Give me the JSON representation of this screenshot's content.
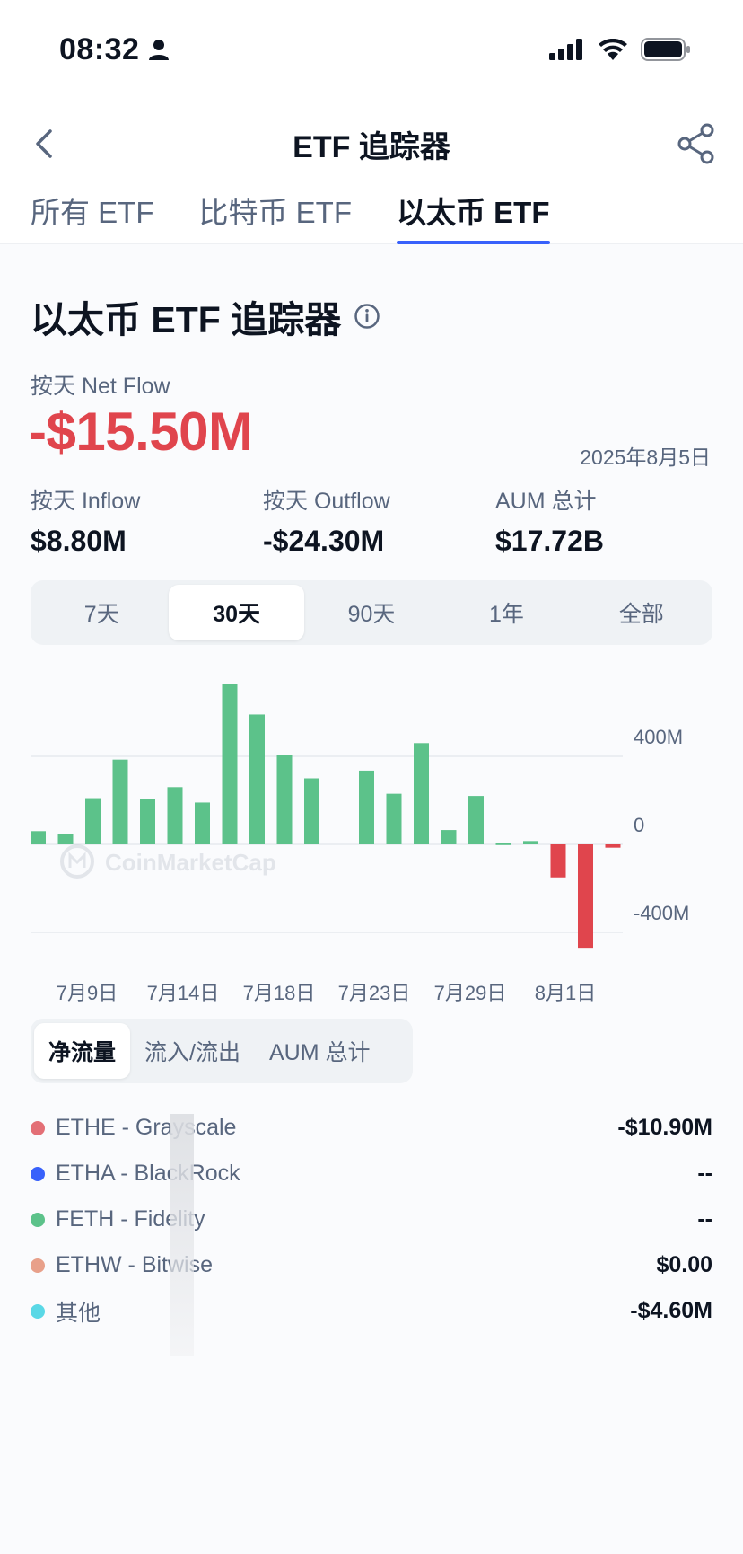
{
  "status_bar": {
    "time": "08:32",
    "icons": [
      "person-icon",
      "signal-icon",
      "wifi-icon",
      "battery-icon"
    ]
  },
  "nav": {
    "title": "ETF 追踪器",
    "back_icon": "back-chevron-icon",
    "share_icon": "share-icon"
  },
  "tabs": [
    {
      "label": "所有 ETF",
      "active": false
    },
    {
      "label": "比特币 ETF",
      "active": false
    },
    {
      "label": "以太币 ETF",
      "active": true
    }
  ],
  "summary": {
    "title": "以太币 ETF 追踪器",
    "netflow_label": "按天 Net Flow",
    "netflow_value": "-$15.50M",
    "date": "2025年8月5日",
    "stats": [
      {
        "label": "按天 Inflow",
        "value": "$8.80M"
      },
      {
        "label": "按天 Outflow",
        "value": "-$24.30M"
      },
      {
        "label": "AUM 总计",
        "value": "$17.72B"
      }
    ]
  },
  "periods": [
    {
      "label": "7天",
      "active": false
    },
    {
      "label": "30天",
      "active": true
    },
    {
      "label": "90天",
      "active": false
    },
    {
      "label": "1年",
      "active": false
    },
    {
      "label": "全部",
      "active": false
    }
  ],
  "chart_data": {
    "type": "bar",
    "watermark": "CoinMarketCap",
    "x_tick_labels": [
      "7月9日",
      "7月14日",
      "7月18日",
      "7月23日",
      "7月29日",
      "8月1日"
    ],
    "y_tick_labels": [
      "400M",
      "0",
      "-400M"
    ],
    "ylim": [
      -450,
      750
    ],
    "values": [
      60,
      45,
      210,
      385,
      205,
      260,
      190,
      730,
      590,
      405,
      300,
      null,
      335,
      230,
      460,
      65,
      220,
      5,
      15,
      -150,
      -470,
      -15
    ],
    "positive_color": "#5cc28a",
    "negative_color": "#e0454d"
  },
  "metrics": [
    {
      "label": "净流量",
      "active": true
    },
    {
      "label": "流入/流出",
      "active": false
    },
    {
      "label": "AUM 总计",
      "active": false
    }
  ],
  "legend": [
    {
      "name": "ETHE - Grayscale",
      "value": "-$10.90M",
      "color": "#e36f76"
    },
    {
      "name": "ETHA - BlackRock",
      "value": "--",
      "color": "#3861fb"
    },
    {
      "name": "FETH - Fidelity",
      "value": "--",
      "color": "#5cc28a"
    },
    {
      "name": "ETHW - Bitwise",
      "value": "$0.00",
      "color": "#e8a08a"
    },
    {
      "name": "其他",
      "value": "-$4.60M",
      "color": "#5ad8e6"
    }
  ]
}
